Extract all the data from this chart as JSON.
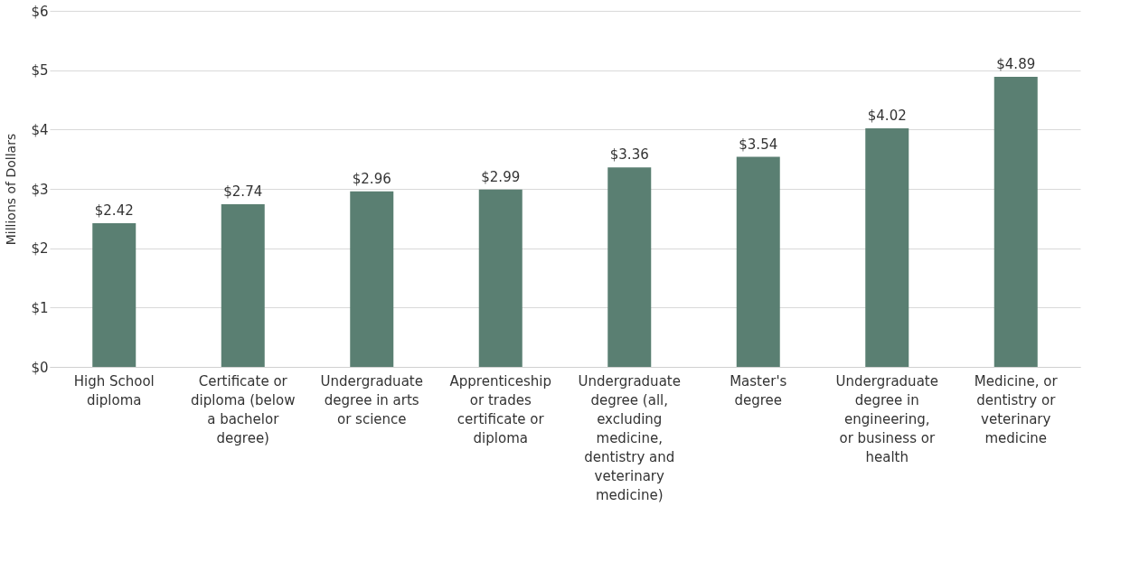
{
  "chart_data": {
    "type": "bar",
    "ylabel": "Millions of  Dollars",
    "categories": [
      "High School diploma",
      "Certificate or diploma (below a bachelor degree)",
      "Undergraduate degree in arts or science",
      "Apprenticeship or trades certificate or diploma",
      "Undergraduate degree (all, excluding medicine, dentistry and veterinary medicine)",
      "Master's degree",
      "Undergraduate degree in engineering, or business or health",
      "Medicine, or dentistry or veterinary medicine"
    ],
    "values": [
      2.42,
      2.74,
      2.96,
      2.99,
      3.36,
      3.54,
      4.02,
      4.89
    ],
    "value_labels": [
      "$2.42",
      "$2.74",
      "$2.96",
      "$2.99",
      "$3.36",
      "$3.54",
      "$4.02",
      "$4.89"
    ],
    "color": "#5a7f72",
    "ylim": [
      0,
      6
    ],
    "yticks": [
      {
        "value": 0,
        "label": "$0"
      },
      {
        "value": 1,
        "label": "$1"
      },
      {
        "value": 2,
        "label": "$2"
      },
      {
        "value": 3,
        "label": "$3"
      },
      {
        "value": 4,
        "label": "$4"
      },
      {
        "value": 5,
        "label": "$5"
      },
      {
        "value": 6,
        "label": "$6"
      }
    ],
    "grid": "y"
  }
}
